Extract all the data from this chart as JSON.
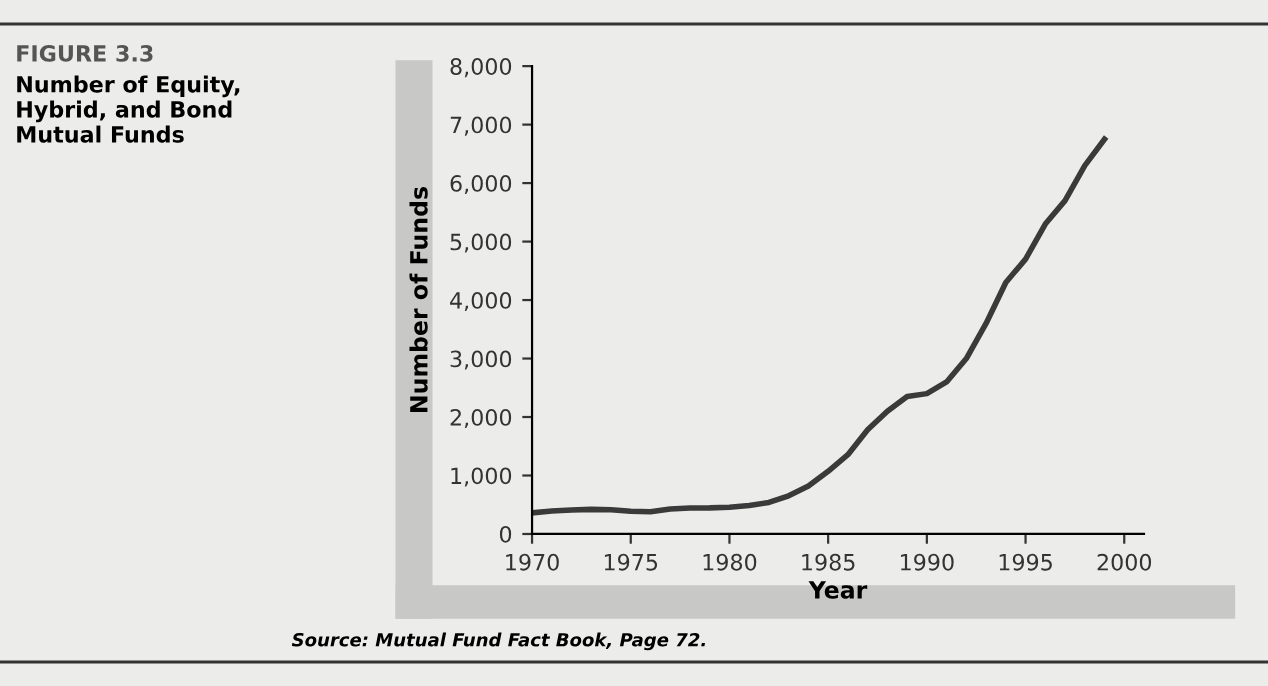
{
  "chart_data": {
    "type": "line",
    "title": "FIGURE 3.3",
    "subtitle": "Number of Equity,\nHybrid, and Bond\nMutual Funds",
    "xlabel": "Year",
    "ylabel": "Number of Funds",
    "annotations": [
      "Source: Mutual Fund Fact Book, Page 72."
    ],
    "x": [
      1970,
      1971,
      1972,
      1973,
      1974,
      1975,
      1976,
      1977,
      1978,
      1979,
      1980,
      1981,
      1982,
      1983,
      1984,
      1985,
      1986,
      1987,
      1988,
      1989,
      1990,
      1991,
      1992,
      1993,
      1994,
      1995,
      1996,
      1997,
      1998,
      1999
    ],
    "series": [
      {
        "color": "#3a3a3a",
        "values": [
          361,
          392,
          410,
          421,
          416,
          390,
          380,
          427,
          444,
          446,
          458,
          486,
          539,
          653,
          820,
          1071,
          1356,
          1781,
          2100,
          2350,
          2400,
          2600,
          3000,
          3600,
          4300,
          4700,
          5300,
          5700,
          6300,
          6750
        ]
      }
    ],
    "xlim": [
      1970,
      2001
    ],
    "xticks": [
      1970,
      1975,
      1980,
      1985,
      1990,
      1995,
      2000
    ],
    "ylim": [
      0,
      8000
    ],
    "yticks": [
      {
        "value": 0,
        "label": "0"
      },
      {
        "value": 1000,
        "label": "1,000"
      },
      {
        "value": 2000,
        "label": "2,000"
      },
      {
        "value": 3000,
        "label": "3,000"
      },
      {
        "value": 4000,
        "label": "4,000"
      },
      {
        "value": 5000,
        "label": "5,000"
      },
      {
        "value": 6000,
        "label": "6,000"
      },
      {
        "value": 7000,
        "label": "7,000"
      },
      {
        "value": 8000,
        "label": "8,000"
      }
    ],
    "grid": false,
    "legend": false,
    "marker": "none",
    "line_style": "solid"
  }
}
